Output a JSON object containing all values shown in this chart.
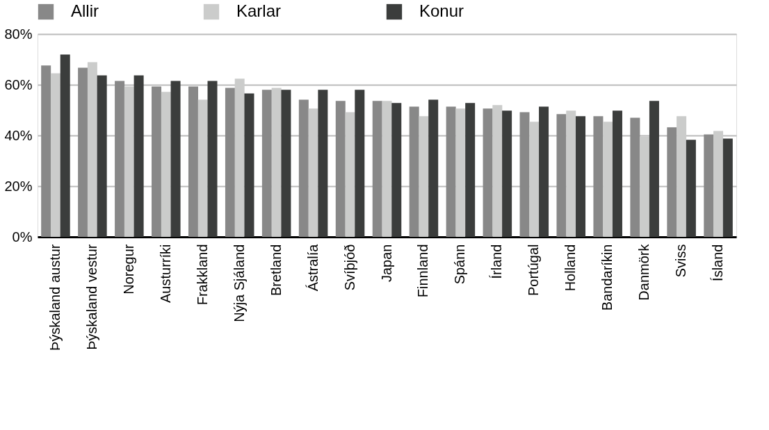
{
  "chart_data": {
    "type": "bar",
    "categories": [
      "Þýskaland austur",
      "Þýskaland vestur",
      "Noregur",
      "Austurríki",
      "Frakkland",
      "Nýja Sjáland",
      "Bretland",
      "Ástralía",
      "Svíþjóð",
      "Japan",
      "Finnland",
      "Spánn",
      "Írland",
      "Portúgal",
      "Holland",
      "Bandaríkin",
      "Danmörk",
      "Sviss",
      "Ísland"
    ],
    "series": [
      {
        "name": "Allir",
        "color": "#888888",
        "values": [
          67.6,
          66.7,
          61.5,
          59.3,
          59.3,
          58.8,
          58.0,
          54.1,
          53.6,
          53.6,
          51.4,
          51.4,
          50.6,
          49.2,
          48.4,
          47.6,
          47.0,
          43.2,
          40.4
        ]
      },
      {
        "name": "Karlar",
        "color": "#cbcccb",
        "values": [
          64.5,
          68.9,
          59.3,
          57.2,
          54.1,
          62.4,
          58.8,
          50.6,
          49.2,
          53.6,
          47.6,
          50.6,
          52.0,
          45.4,
          49.8,
          45.4,
          39.6,
          47.6,
          41.8
        ]
      },
      {
        "name": "Konur",
        "color": "#3b3d3c",
        "values": [
          71.9,
          63.7,
          63.7,
          61.5,
          61.5,
          56.6,
          58.0,
          58.0,
          58.0,
          52.8,
          54.1,
          52.8,
          49.8,
          51.4,
          47.6,
          49.8,
          53.6,
          38.3,
          38.8
        ]
      }
    ],
    "ylim": [
      0,
      80
    ],
    "yticks": [
      {
        "value": 0,
        "label": "0%"
      },
      {
        "value": 20,
        "label": "20%"
      },
      {
        "value": 40,
        "label": "40%"
      },
      {
        "value": 60,
        "label": "60%"
      },
      {
        "value": 80,
        "label": "80%"
      }
    ],
    "grid": "y",
    "legend": "top"
  }
}
